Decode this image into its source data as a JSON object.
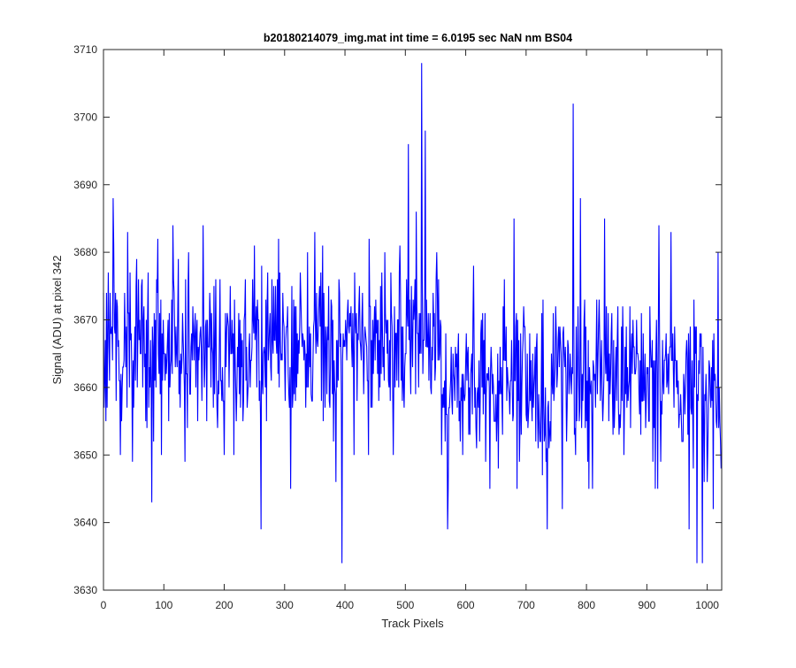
{
  "chart_data": {
    "type": "line",
    "title": "b20180214079_img.mat int time = 6.0195 sec  NaN nm BS04",
    "xlabel": "Track Pixels",
    "ylabel": "Signal (ADU) at pixel 342",
    "xlim": [
      0,
      1024
    ],
    "ylim": [
      3630,
      3710
    ],
    "xticks": [
      0,
      100,
      200,
      300,
      400,
      500,
      600,
      700,
      800,
      900,
      1000
    ],
    "yticks": [
      3630,
      3640,
      3650,
      3660,
      3670,
      3680,
      3690,
      3700,
      3710
    ],
    "grid": false,
    "box": true,
    "line_color": "#0000ff",
    "axis_color": "#262626",
    "n_points": 1024,
    "anchor_points": [
      {
        "x": 0,
        "y": 3674
      },
      {
        "x": 4,
        "y": 3655
      },
      {
        "x": 8,
        "y": 3677
      },
      {
        "x": 16,
        "y": 3688
      },
      {
        "x": 30,
        "y": 3655
      },
      {
        "x": 40,
        "y": 3683
      },
      {
        "x": 48,
        "y": 3649
      },
      {
        "x": 80,
        "y": 3643
      },
      {
        "x": 115,
        "y": 3684
      },
      {
        "x": 135,
        "y": 3649
      },
      {
        "x": 165,
        "y": 3684
      },
      {
        "x": 200,
        "y": 3650
      },
      {
        "x": 261,
        "y": 3639
      },
      {
        "x": 290,
        "y": 3682
      },
      {
        "x": 310,
        "y": 3645
      },
      {
        "x": 350,
        "y": 3683
      },
      {
        "x": 385,
        "y": 3646
      },
      {
        "x": 395,
        "y": 3634
      },
      {
        "x": 440,
        "y": 3682
      },
      {
        "x": 480,
        "y": 3650
      },
      {
        "x": 505,
        "y": 3696
      },
      {
        "x": 518,
        "y": 3686
      },
      {
        "x": 527,
        "y": 3708
      },
      {
        "x": 533,
        "y": 3698
      },
      {
        "x": 570,
        "y": 3639
      },
      {
        "x": 595,
        "y": 3650
      },
      {
        "x": 640,
        "y": 3645
      },
      {
        "x": 680,
        "y": 3685
      },
      {
        "x": 735,
        "y": 3639
      },
      {
        "x": 760,
        "y": 3642
      },
      {
        "x": 778,
        "y": 3702
      },
      {
        "x": 790,
        "y": 3688
      },
      {
        "x": 810,
        "y": 3645
      },
      {
        "x": 830,
        "y": 3685
      },
      {
        "x": 920,
        "y": 3684
      },
      {
        "x": 940,
        "y": 3683
      },
      {
        "x": 970,
        "y": 3639
      },
      {
        "x": 983,
        "y": 3634
      },
      {
        "x": 992,
        "y": 3634
      },
      {
        "x": 1010,
        "y": 3642
      },
      {
        "x": 1018,
        "y": 3680
      },
      {
        "x": 1023,
        "y": 3648
      }
    ],
    "noise_mean_by_segment": [
      {
        "x_from": 0,
        "x_to": 450,
        "mean": 3666
      },
      {
        "x_from": 450,
        "x_to": 560,
        "mean": 3667
      },
      {
        "x_from": 560,
        "x_to": 1024,
        "mean": 3661
      }
    ],
    "noise_spread_adu": 6
  }
}
